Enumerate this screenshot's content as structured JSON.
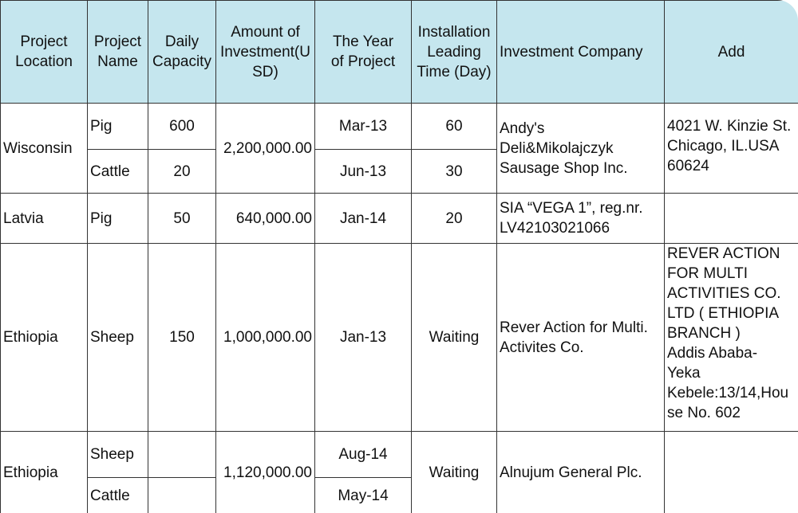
{
  "headers": {
    "location": "Project\nLocation",
    "name": "Project\nName",
    "capacity": "Daily\nCapacity",
    "amount": "Amount of\nInvestment(U\nSD)",
    "year": "The Year\nof Project",
    "leading": "Installation\nLeading\nTime (Day)",
    "company": "Investment Company",
    "add": "Add"
  },
  "rows": {
    "wisconsin": {
      "location": "Wisconsin",
      "amount": "2,200,000.00",
      "company": "Andy's\nDeli&Mikolajczyk\nSausage Shop Inc.",
      "add": "4021 W. Kinzie St.\nChicago, IL.USA\n60624",
      "sub1": {
        "name": "Pig",
        "capacity": "600",
        "year": "Mar-13",
        "leading": "60"
      },
      "sub2": {
        "name": "Cattle",
        "capacity": "20",
        "year": "Jun-13",
        "leading": "30"
      }
    },
    "latvia": {
      "location": "Latvia",
      "name": "Pig",
      "capacity": "50",
      "amount": "640,000.00",
      "year": "Jan-14",
      "leading": "20",
      "company": "SIA “VEGA 1”, reg.nr.\nLV42103021066",
      "add": ""
    },
    "ethiopia1": {
      "location": "Ethiopia",
      "name": "Sheep",
      "capacity": "150",
      "amount": "1,000,000.00",
      "year": "Jan-13",
      "leading": "Waiting",
      "company": "Rever Action for Multi.\nActivites Co.",
      "add": "REVER ACTION\nFOR MULTI\nACTIVITIES CO.\nLTD ( ETHIOPIA\nBRANCH )\nAddis Ababa-\nYeka\nKebele:13/14,Hou\nse No. 602"
    },
    "ethiopia2": {
      "location": "Ethiopia",
      "amount": "1,120,000.00",
      "leading": "Waiting",
      "company": "Alnujum General Plc.",
      "add": "",
      "sub1": {
        "name": "Sheep",
        "capacity": "",
        "year": "Aug-14"
      },
      "sub2": {
        "name": "Cattle",
        "capacity": "",
        "year": "May-14"
      }
    }
  }
}
